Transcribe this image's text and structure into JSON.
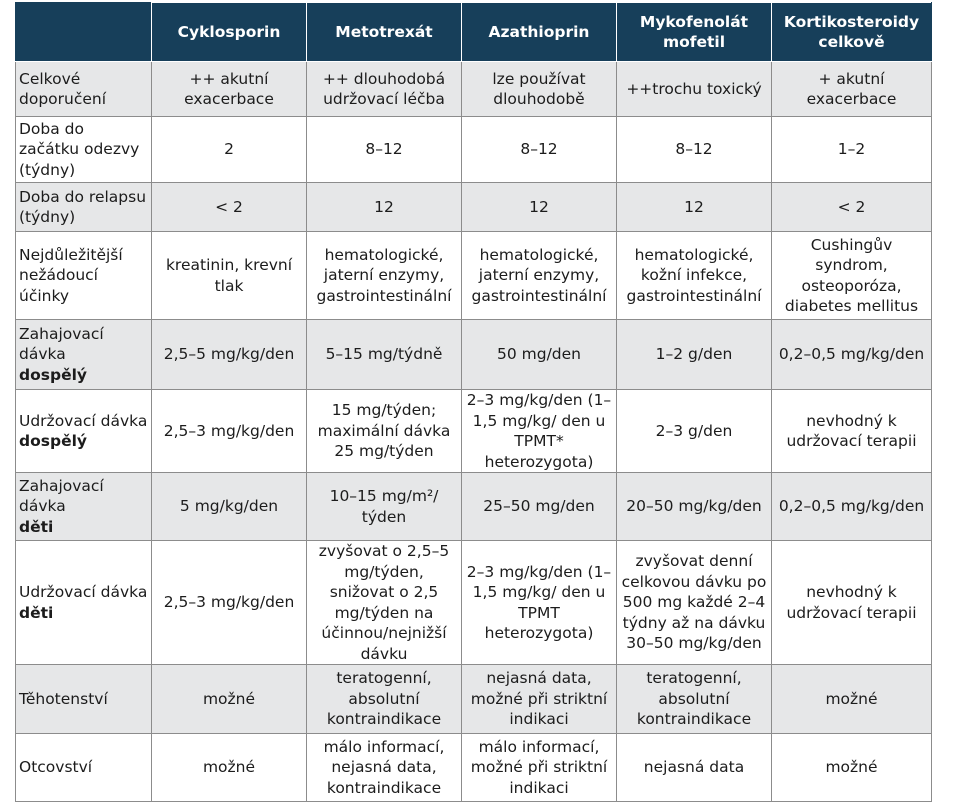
{
  "headers": [
    "",
    "Cyklosporin",
    "Metotrexát",
    "Azathioprin",
    "Mykofenolát mofetil",
    "Kortikosteroidy celkově"
  ],
  "rows": [
    {
      "label": "Celkové doporučení",
      "label_bold": "",
      "cells": [
        "++ akutní exacerbace",
        "++ dlouhodobá udržovací léčba",
        "lze používat dlouhodobě",
        "++trochu toxický",
        "+ akutní exacerbace"
      ]
    },
    {
      "label": "Doba do začátku odezvy (týdny)",
      "label_bold": "",
      "cells": [
        "2",
        "8–12",
        "8–12",
        "8–12",
        "1–2"
      ]
    },
    {
      "label": "Doba do relapsu (týdny)",
      "label_bold": "",
      "cells": [
        "< 2",
        "12",
        "12",
        "12",
        "< 2"
      ]
    },
    {
      "label": "Nejdůležitější nežádoucí účinky",
      "label_bold": "",
      "cells": [
        "kreatinin, krevní tlak",
        "hematologické, jaterní enzymy, gastrointestinální",
        "hematologické, jaterní enzymy, gastrointestinální",
        "hematologické, kožní infekce, gastrointestinální",
        "Cushingův syndrom, osteoporóza, diabetes mellitus"
      ]
    },
    {
      "label": "Zahajovací dávka",
      "label_bold": "dospělý",
      "cells": [
        "2,5–5 mg/kg/den",
        "5–15 mg/týdně",
        "50 mg/den",
        "1–2 g/den",
        "0,2–0,5 mg/kg/den"
      ]
    },
    {
      "label": "Udržovací dávka",
      "label_bold": "dospělý",
      "cells": [
        "2,5–3 mg/kg/den",
        "15 mg/týden; maximální dávka 25 mg/týden",
        "2–3 mg/kg/den (1–1,5 mg/kg/ den u TPMT* heterozygota)",
        "2–3 g/den",
        "nevhodný k udržovací terapii"
      ]
    },
    {
      "label": "Zahajovací dávka",
      "label_bold": "děti",
      "cells": [
        "5 mg/kg/den",
        "10–15 mg/m²/ týden",
        "25–50 mg/den",
        "20–50 mg/kg/den",
        "0,2–0,5 mg/kg/den"
      ]
    },
    {
      "label": "Udržovací dávka",
      "label_bold": "děti",
      "cells": [
        "2,5–3 mg/kg/den",
        "zvyšovat o 2,5–5 mg/týden, snižovat o 2,5 mg/týden na účinnou/nejnižší dávku",
        "2–3 mg/kg/den (1–1,5 mg/kg/ den u TPMT heterozygota)",
        "zvyšovat denní celkovou dávku po 500 mg každé 2–4 týdny až na dávku 30–50 mg/kg/den",
        "nevhodný k udržovací terapii"
      ]
    },
    {
      "label": "Těhotenství",
      "label_bold": "",
      "cells": [
        "možné",
        "teratogenní, absolutní kontraindikace",
        "nejasná data, možné při striktní indikaci",
        "teratogenní, absolutní kontraindikace",
        "možné"
      ]
    },
    {
      "label": "Otcovství",
      "label_bold": "",
      "cells": [
        "možné",
        "málo informací, nejasná data, kontraindikace",
        "málo informací, možné při striktní indikaci",
        "nejasná data",
        "možné"
      ]
    }
  ]
}
